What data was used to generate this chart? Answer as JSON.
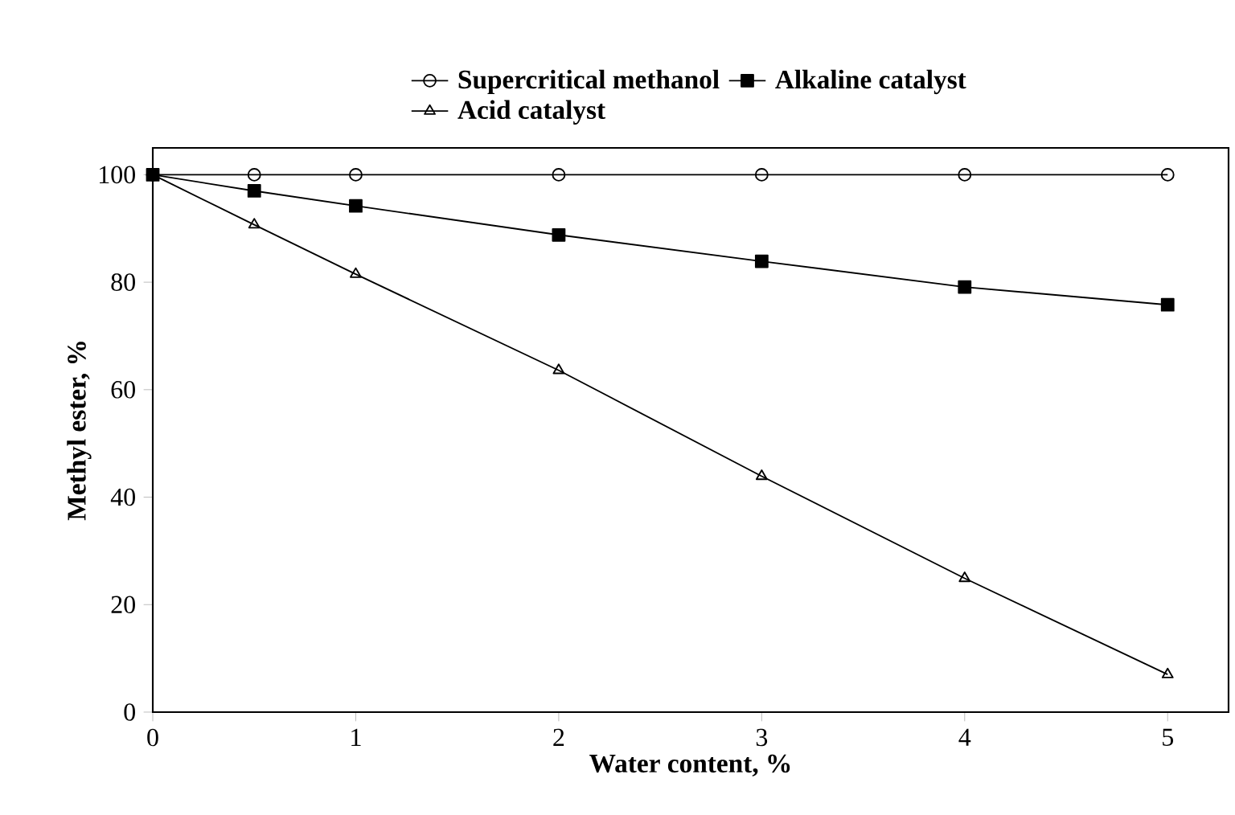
{
  "chart_data": {
    "type": "line",
    "xlabel": "Water content, %",
    "ylabel": "Methyl ester, %",
    "xlim": [
      0,
      5.3
    ],
    "ylim": [
      0,
      105
    ],
    "xticks": [
      0,
      1,
      2,
      3,
      4,
      5
    ],
    "yticks": [
      0,
      20,
      40,
      60,
      80,
      100
    ],
    "grid": false,
    "legend": "top",
    "x": [
      0,
      0.5,
      1,
      2,
      3,
      4,
      5
    ],
    "series": [
      {
        "name": "Supercritical methanol",
        "color": "#000000",
        "marker": "circle",
        "values": [
          100,
          100,
          100,
          100,
          100,
          100,
          100
        ]
      },
      {
        "name": "Alkaline catalyst",
        "color": "#000000",
        "marker": "square",
        "values": [
          100,
          97.0,
          94.2,
          88.8,
          83.9,
          79.1,
          75.8
        ]
      },
      {
        "name": "Acid catalyst",
        "color": "#000000",
        "marker": "triangle",
        "values": [
          100,
          90.7,
          81.5,
          63.6,
          43.9,
          24.9,
          7.0
        ]
      }
    ]
  }
}
